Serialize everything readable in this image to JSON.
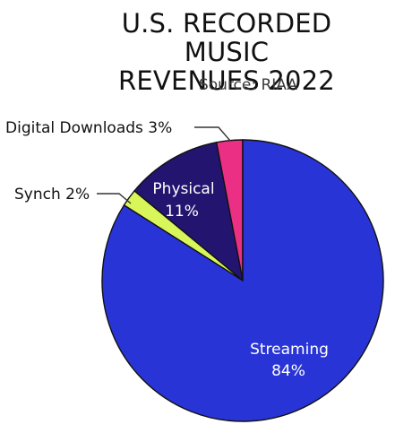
{
  "chart_data": {
    "type": "pie",
    "title_lines": [
      "U.S. RECORDED MUSIC",
      "REVENUES 2022"
    ],
    "subtitle": "Source: RIAA",
    "slices": [
      {
        "label": "Digital Downloads",
        "value": 3,
        "value_text": "3%",
        "color": "#ea2f85",
        "label_text": "Digital Downloads 3%"
      },
      {
        "label": "Physical",
        "value": 11,
        "value_text": "11%",
        "color": "#23156f",
        "label_text": ""
      },
      {
        "label": "Synch",
        "value": 2,
        "value_text": "2%",
        "color": "#d8f55a",
        "label_text": "Synch 2%"
      },
      {
        "label": "Streaming",
        "value": 84,
        "value_text": "84%",
        "color": "#2934d7",
        "label_text": ""
      }
    ]
  }
}
